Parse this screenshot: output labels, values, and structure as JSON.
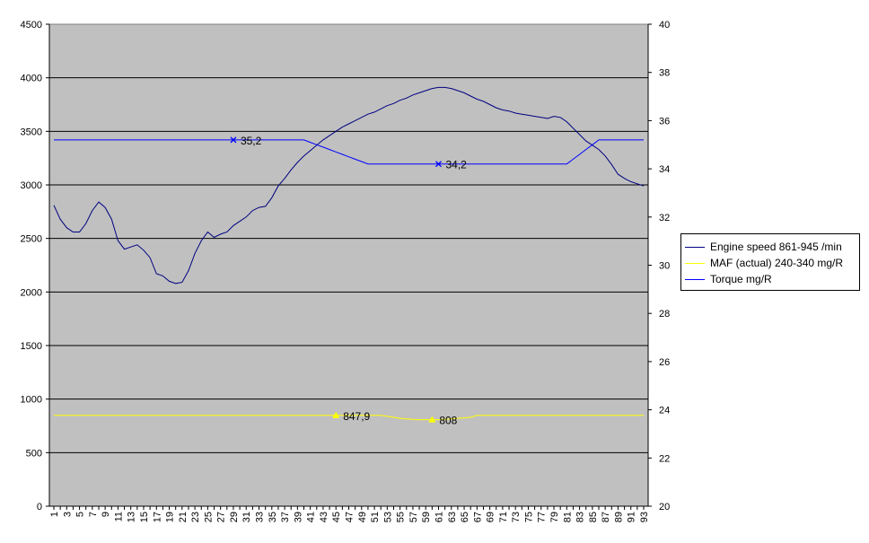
{
  "chart_data": {
    "type": "line",
    "x": [
      1,
      2,
      3,
      4,
      5,
      6,
      7,
      8,
      9,
      10,
      11,
      12,
      13,
      14,
      15,
      16,
      17,
      18,
      19,
      20,
      21,
      22,
      23,
      24,
      25,
      26,
      27,
      28,
      29,
      30,
      31,
      32,
      33,
      34,
      35,
      36,
      37,
      38,
      39,
      40,
      41,
      42,
      43,
      44,
      45,
      46,
      47,
      48,
      49,
      50,
      51,
      52,
      53,
      54,
      55,
      56,
      57,
      58,
      59,
      60,
      61,
      62,
      63,
      64,
      65,
      66,
      67,
      68,
      69,
      70,
      71,
      72,
      73,
      74,
      75,
      76,
      77,
      78,
      79,
      80,
      81,
      82,
      83,
      84,
      85,
      86,
      87,
      88,
      89,
      90,
      91,
      92,
      93
    ],
    "x_tick_labels": [
      "1",
      "5",
      "9",
      "13",
      "17",
      "21",
      "25",
      "29",
      "33",
      "37",
      "41",
      "45",
      "49",
      "53",
      "57",
      "61",
      "65",
      "69",
      "73",
      "77",
      "81",
      "85",
      "89",
      "93",
      "3",
      "7",
      "11",
      "15",
      "19",
      "23",
      "27",
      "31",
      "35",
      "39",
      "43",
      "47",
      "51",
      "55",
      "59",
      "63",
      "67",
      "71",
      "75",
      "79",
      "83",
      "87",
      "91"
    ],
    "y_left": {
      "min": 0,
      "max": 4500,
      "step": 500,
      "ticks": [
        "0",
        "500",
        "1000",
        "1500",
        "2000",
        "2500",
        "3000",
        "3500",
        "4000",
        "4500"
      ]
    },
    "y_right": {
      "min": 20,
      "max": 40,
      "step": 2,
      "ticks": [
        "20",
        "22",
        "24",
        "26",
        "28",
        "30",
        "32",
        "34",
        "36",
        "38",
        "40"
      ]
    },
    "grid": true,
    "plot_background": "#c0c0c0",
    "legend_position": "right",
    "series": [
      {
        "name": "Engine speed 861-945  /min",
        "axis": "left",
        "color": "#000080",
        "values": [
          2810,
          2680,
          2600,
          2560,
          2560,
          2640,
          2760,
          2840,
          2790,
          2680,
          2480,
          2400,
          2420,
          2440,
          2390,
          2320,
          2170,
          2150,
          2100,
          2080,
          2090,
          2200,
          2360,
          2480,
          2560,
          2510,
          2540,
          2560,
          2620,
          2660,
          2700,
          2760,
          2790,
          2800,
          2880,
          2990,
          3060,
          3140,
          3210,
          3270,
          3320,
          3370,
          3420,
          3460,
          3500,
          3540,
          3570,
          3600,
          3630,
          3660,
          3680,
          3710,
          3740,
          3760,
          3790,
          3810,
          3840,
          3860,
          3880,
          3900,
          3910,
          3910,
          3900,
          3880,
          3860,
          3830,
          3800,
          3780,
          3750,
          3720,
          3700,
          3690,
          3670,
          3660,
          3650,
          3640,
          3630,
          3620,
          3640,
          3630,
          3590,
          3530,
          3470,
          3410,
          3370,
          3330,
          3270,
          3190,
          3100,
          3060,
          3030,
          3010,
          2990
        ]
      },
      {
        "name": "MAF (actual) 240-340  mg/R",
        "axis": "left",
        "color": "#ffff00",
        "values": [
          847.9,
          847.9,
          847.9,
          847.9,
          847.9,
          847.9,
          847.9,
          847.9,
          847.9,
          847.9,
          847.9,
          847.9,
          847.9,
          847.9,
          847.9,
          847.9,
          847.9,
          847.9,
          847.9,
          847.9,
          847.9,
          847.9,
          847.9,
          847.9,
          847.9,
          847.9,
          847.9,
          847.9,
          847.9,
          847.9,
          847.9,
          847.9,
          847.9,
          847.9,
          847.9,
          847.9,
          847.9,
          847.9,
          847.9,
          847.9,
          847.9,
          847.9,
          847.9,
          847.9,
          847.9,
          847.9,
          847.9,
          847.9,
          847.9,
          847.9,
          847.9,
          847.9,
          840,
          830,
          820,
          815,
          810,
          808,
          808,
          808,
          808,
          810,
          815,
          820,
          825,
          830,
          847.9,
          847.9,
          847.9,
          847.9,
          847.9,
          847.9,
          847.9,
          847.9,
          847.9,
          847.9,
          847.9,
          847.9,
          847.9,
          847.9,
          847.9,
          847.9,
          847.9,
          847.9,
          847.9,
          847.9,
          847.9,
          847.9,
          847.9,
          847.9,
          847.9,
          847.9,
          847.9
        ],
        "labels": [
          {
            "x": 45,
            "text": "847,9"
          },
          {
            "x": 60,
            "text": "808"
          }
        ]
      },
      {
        "name": "Torque  mg/R",
        "axis": "right",
        "color": "#0000ff",
        "values": [
          35.2,
          35.2,
          35.2,
          35.2,
          35.2,
          35.2,
          35.2,
          35.2,
          35.2,
          35.2,
          35.2,
          35.2,
          35.2,
          35.2,
          35.2,
          35.2,
          35.2,
          35.2,
          35.2,
          35.2,
          35.2,
          35.2,
          35.2,
          35.2,
          35.2,
          35.2,
          35.2,
          35.2,
          35.2,
          35.2,
          35.2,
          35.2,
          35.2,
          35.2,
          35.2,
          35.2,
          35.2,
          35.2,
          35.2,
          35.2,
          35.1,
          35.0,
          34.9,
          34.8,
          34.7,
          34.6,
          34.5,
          34.4,
          34.3,
          34.2,
          34.2,
          34.2,
          34.2,
          34.2,
          34.2,
          34.2,
          34.2,
          34.2,
          34.2,
          34.2,
          34.2,
          34.2,
          34.2,
          34.2,
          34.2,
          34.2,
          34.2,
          34.2,
          34.2,
          34.2,
          34.2,
          34.2,
          34.2,
          34.2,
          34.2,
          34.2,
          34.2,
          34.2,
          34.2,
          34.2,
          34.2,
          34.4,
          34.6,
          34.8,
          35.0,
          35.2,
          35.2,
          35.2,
          35.2,
          35.2,
          35.2,
          35.2,
          35.2
        ],
        "labels": [
          {
            "x": 29,
            "text": "35,2"
          },
          {
            "x": 61,
            "text": "34,2"
          }
        ]
      }
    ]
  }
}
